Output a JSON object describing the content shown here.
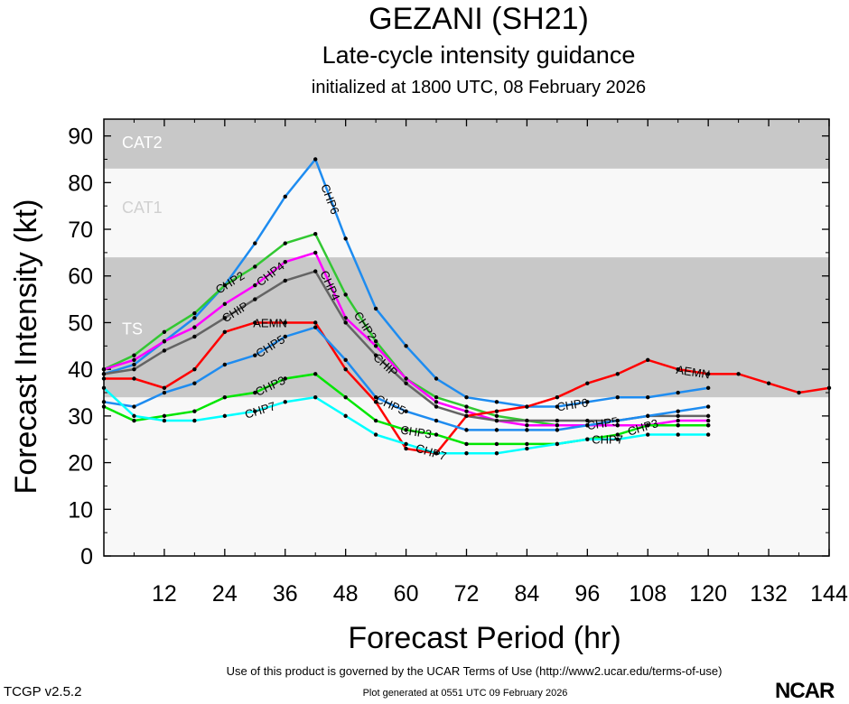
{
  "header": {
    "title": "GEZANI (SH21)",
    "subtitle": "Late-cycle intensity guidance",
    "initialized": "initialized at 1800 UTC, 08 February 2026"
  },
  "footer": {
    "terms": "Use of this product is governed by the UCAR Terms of Use (http://www2.ucar.edu/terms-of-use)",
    "generated": "Plot generated at 0551 UTC   09 February 2026",
    "version": "TCGP v2.5.2",
    "logo": "NCAR"
  },
  "chart_data": {
    "type": "line",
    "xlabel": "Forecast Period (hr)",
    "ylabel": "Forecast Intensity (kt)",
    "xlim": [
      0,
      144
    ],
    "ylim": [
      0,
      93.6
    ],
    "xticks": [
      12,
      24,
      36,
      48,
      60,
      72,
      84,
      96,
      108,
      120,
      132,
      144
    ],
    "yticks": [
      0,
      10,
      20,
      30,
      40,
      50,
      60,
      70,
      80,
      90
    ],
    "bands": [
      {
        "label": "TS",
        "from": 34,
        "to": 64,
        "color": "#c8c8c8"
      },
      {
        "label": "CAT1",
        "from": 64,
        "to": 83,
        "color": "#f8f8f8"
      },
      {
        "label": "CAT2",
        "from": 83,
        "to": 96,
        "color": "#c8c8c8"
      }
    ],
    "background": "#f8f8f8",
    "series": [
      {
        "name": "CHP6",
        "color": "#1e8cf0",
        "label_at": [
          45,
          93
        ],
        "x": [
          0,
          6,
          12,
          18,
          24,
          30,
          36,
          42,
          48,
          54,
          60,
          66,
          72,
          78,
          84,
          90,
          96,
          102,
          108,
          114,
          120
        ],
        "values": [
          39,
          41,
          46,
          51,
          58,
          67,
          77,
          85,
          68,
          53,
          45,
          38,
          34,
          33,
          32,
          32,
          33,
          34,
          34,
          35,
          36
        ]
      },
      {
        "name": "CHP2",
        "color": "#32c832",
        "label_at": [
          25,
          52
        ],
        "x": [
          0,
          6,
          12,
          18,
          24,
          30,
          36,
          42,
          48,
          54,
          60,
          66,
          72,
          78,
          84,
          90,
          96,
          102,
          108,
          114,
          120
        ],
        "values": [
          40,
          43,
          48,
          52,
          58,
          62,
          67,
          69,
          56,
          46,
          38,
          34,
          32,
          30,
          29,
          28,
          28,
          28,
          28,
          28,
          28
        ]
      },
      {
        "name": "CHP4",
        "color": "#ff00ff",
        "label_at": [
          27,
          45
        ],
        "x": [
          0,
          6,
          12,
          18,
          24,
          30,
          36,
          42,
          48,
          54,
          60,
          66,
          72,
          78,
          84,
          90,
          96,
          102,
          108,
          114,
          120
        ],
        "values": [
          40,
          42,
          46,
          49,
          54,
          58,
          63,
          65,
          51,
          45,
          38,
          33,
          31,
          29,
          28,
          28,
          28,
          28,
          28,
          29,
          29
        ]
      },
      {
        "name": "CHIP",
        "color": "#646464",
        "label_at": [
          28,
          54
        ],
        "x": [
          0,
          6,
          12,
          18,
          24,
          30,
          36,
          42,
          48,
          54,
          60,
          66,
          72,
          78,
          84,
          90,
          96,
          102,
          108,
          114,
          120
        ],
        "values": [
          39,
          40,
          44,
          47,
          51,
          55,
          59,
          61,
          50,
          43,
          37,
          32,
          30,
          29,
          29,
          29,
          29,
          29,
          30,
          30,
          30
        ]
      },
      {
        "name": "AEMN",
        "color": "#ff0000",
        "label_at": [
          27,
          117
        ],
        "x": [
          0,
          6,
          12,
          18,
          24,
          30,
          36,
          42,
          48,
          54,
          60,
          66,
          72,
          78,
          84,
          90,
          96,
          102,
          108,
          114,
          120,
          126,
          132,
          138,
          144
        ],
        "values": [
          38,
          38,
          36,
          40,
          48,
          50,
          50,
          50,
          40,
          33,
          23,
          22,
          30,
          31,
          32,
          34,
          37,
          39,
          42,
          40,
          39,
          39,
          37,
          35,
          36
        ]
      },
      {
        "name": "CHP5",
        "color": "#1e8cf0",
        "label_at": [
          33,
          57,
          99
        ],
        "x": [
          0,
          6,
          12,
          18,
          24,
          30,
          36,
          42,
          48,
          54,
          60,
          66,
          72,
          78,
          84,
          90,
          96,
          102,
          108,
          114,
          120
        ],
        "values": [
          33,
          32,
          35,
          37,
          41,
          43,
          47,
          49,
          42,
          34,
          31,
          29,
          27,
          27,
          27,
          27,
          28,
          29,
          30,
          31,
          32
        ]
      },
      {
        "name": "CHP3",
        "color": "#00e600",
        "label_at": [
          33,
          62,
          101
        ],
        "x": [
          0,
          6,
          12,
          18,
          24,
          30,
          36,
          42,
          48,
          54,
          60,
          66,
          72,
          78,
          84,
          90,
          96,
          102,
          108,
          114,
          120
        ],
        "values": [
          32,
          29,
          30,
          31,
          34,
          35,
          38,
          39,
          34,
          29,
          27,
          26,
          24,
          24,
          24,
          24,
          25,
          26,
          28,
          28,
          28
        ]
      },
      {
        "name": "CHP7",
        "color": "#00ffff",
        "label_at": [
          33,
          63,
          100
        ],
        "x": [
          0,
          6,
          12,
          18,
          24,
          30,
          36,
          42,
          48,
          54,
          60,
          66,
          72,
          78,
          84,
          90,
          96,
          102,
          108,
          114,
          120
        ],
        "values": [
          36,
          30,
          29,
          29,
          30,
          31,
          33,
          34,
          30,
          26,
          24,
          22,
          22,
          22,
          23,
          24,
          25,
          25,
          26,
          26,
          26
        ]
      }
    ]
  }
}
